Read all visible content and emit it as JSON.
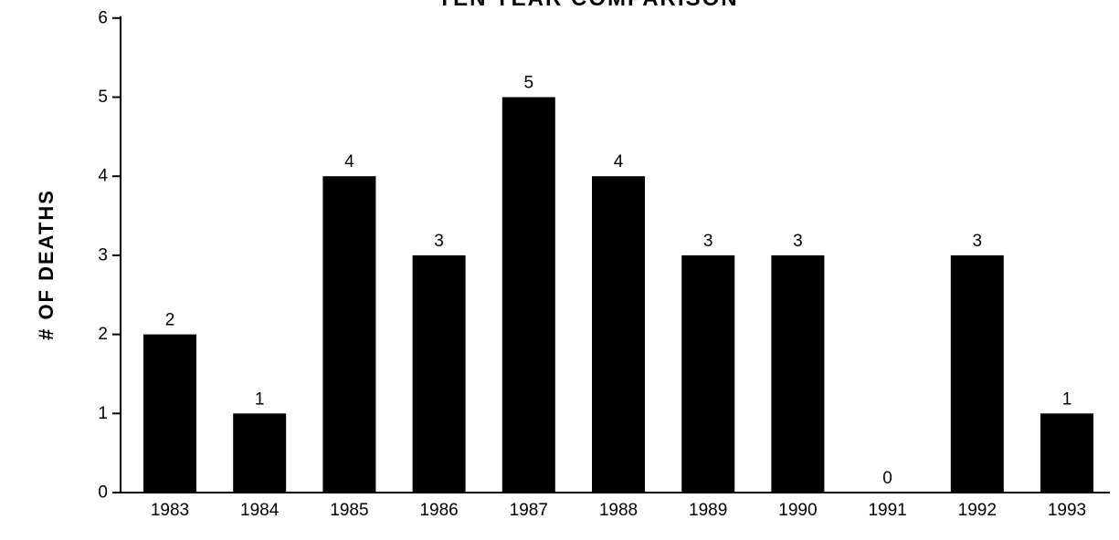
{
  "chart_data": {
    "type": "bar",
    "title": "TEN YEAR COMPARISON",
    "ylabel": "# OF DEATHS",
    "xlabel": "",
    "categories": [
      "1983",
      "1984",
      "1985",
      "1986",
      "1987",
      "1988",
      "1989",
      "1990",
      "1991",
      "1992",
      "1993"
    ],
    "values": [
      2,
      1,
      4,
      3,
      5,
      4,
      3,
      3,
      0,
      3,
      1
    ],
    "data_labels": [
      "2",
      "1",
      "4",
      "3",
      "5",
      "4",
      "3",
      "3",
      "0",
      "3",
      "1"
    ],
    "yticks": [
      "0",
      "1",
      "2",
      "3",
      "4",
      "5",
      "6"
    ],
    "ylim": [
      0,
      6
    ],
    "bar_color": "#000000",
    "grid": false,
    "legend": "none"
  }
}
